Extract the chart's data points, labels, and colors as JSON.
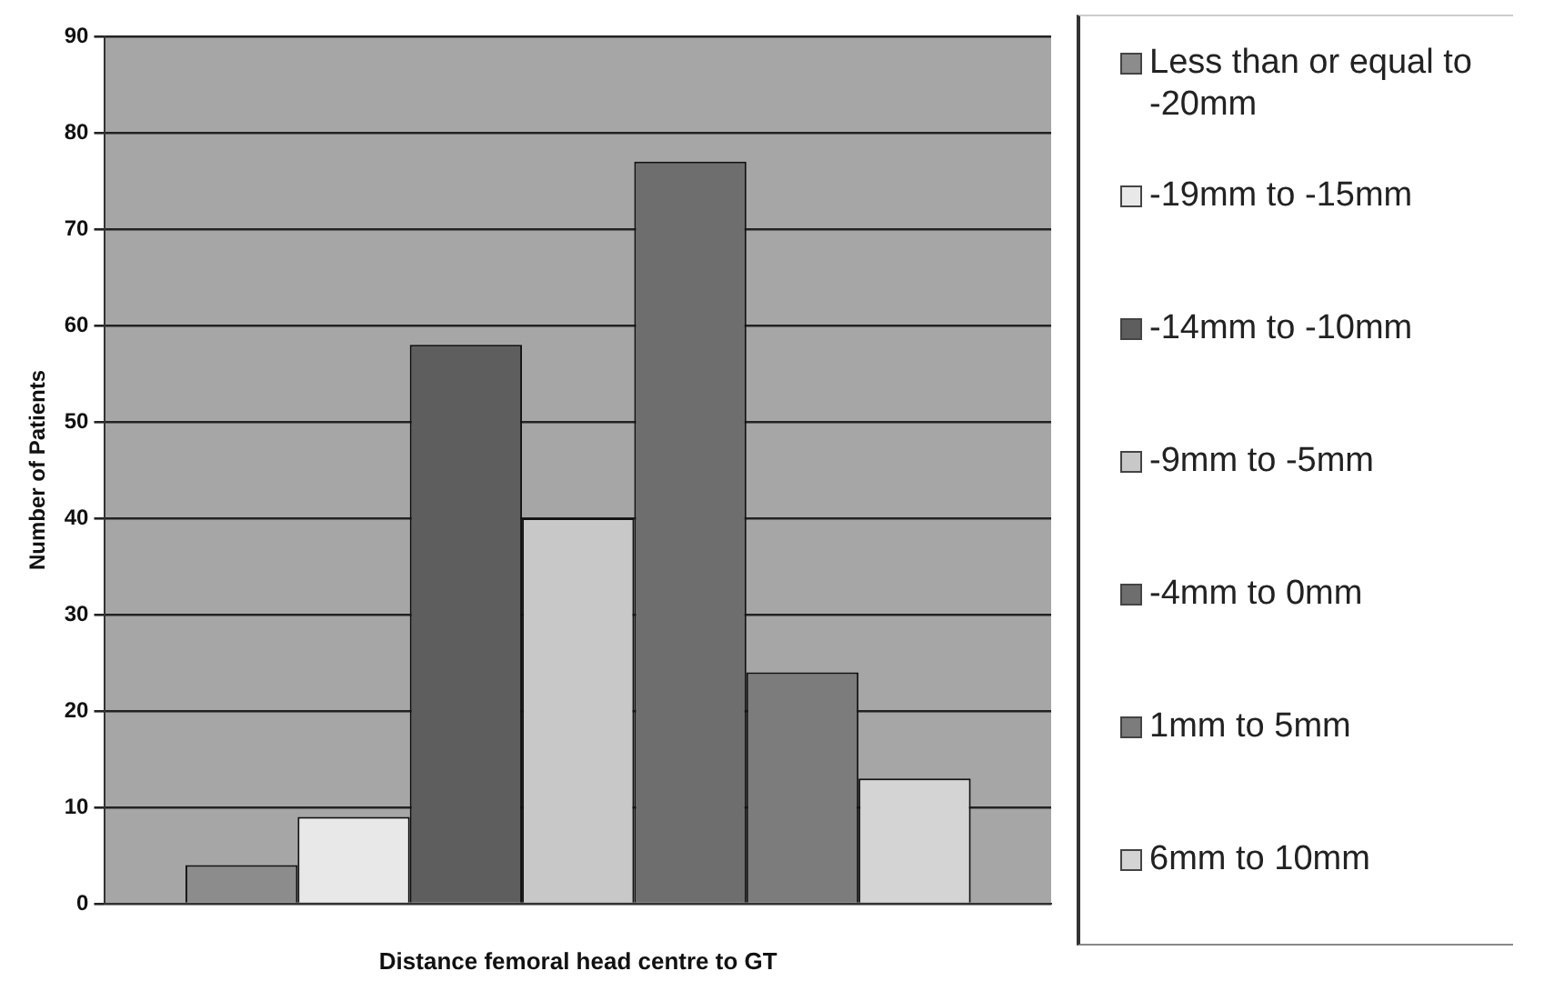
{
  "chart_data": {
    "type": "bar",
    "xlabel": "Distance femoral head centre to GT",
    "ylabel": "Number of Patients",
    "categories": [
      null
    ],
    "series": [
      {
        "name": "Less than or equal to -20mm",
        "color": "#8c8c8c",
        "values": [
          4
        ]
      },
      {
        "name": "-19mm to -15mm",
        "color": "#e8e8e8",
        "values": [
          9
        ]
      },
      {
        "name": "-14mm to -10mm",
        "color": "#5e5e5e",
        "values": [
          58
        ]
      },
      {
        "name": "-9mm to -5mm",
        "color": "#c8c8c8",
        "values": [
          40
        ]
      },
      {
        "name": "-4mm to 0mm",
        "color": "#6e6e6e",
        "values": [
          77
        ]
      },
      {
        "name": "1mm to 5mm",
        "color": "#7c7c7c",
        "values": [
          24
        ]
      },
      {
        "name": "6mm to 10mm",
        "color": "#d4d4d4",
        "values": [
          13
        ]
      }
    ],
    "ylim": [
      0,
      90
    ],
    "yticks": [
      0,
      10,
      20,
      30,
      40,
      50,
      60,
      70,
      80,
      90
    ],
    "grid": "y",
    "legend": "right"
  }
}
